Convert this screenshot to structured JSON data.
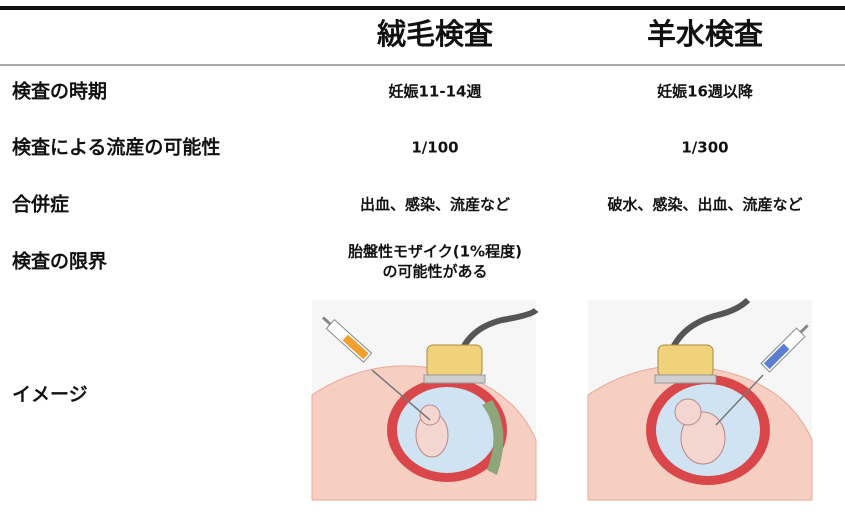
{
  "table": {
    "columns": [
      "絨毛検査",
      "羊水検査"
    ],
    "rows": [
      {
        "label": "検査の時期",
        "cells": [
          "妊娠11-14週",
          "妊娠16週以降"
        ]
      },
      {
        "label": "検査による流産の可能性",
        "cells": [
          "1/100",
          "1/300"
        ]
      },
      {
        "label": "合併症",
        "cells": [
          "出血、感染、流産など",
          "破水、感染、出血、流産など"
        ]
      },
      {
        "label": "検査の限界",
        "cells": [
          [
            "胎盤性モザイク(1%程度)",
            "の可能性がある"
          ]
        ]
      },
      {
        "label": "イメージ"
      }
    ]
  }
}
